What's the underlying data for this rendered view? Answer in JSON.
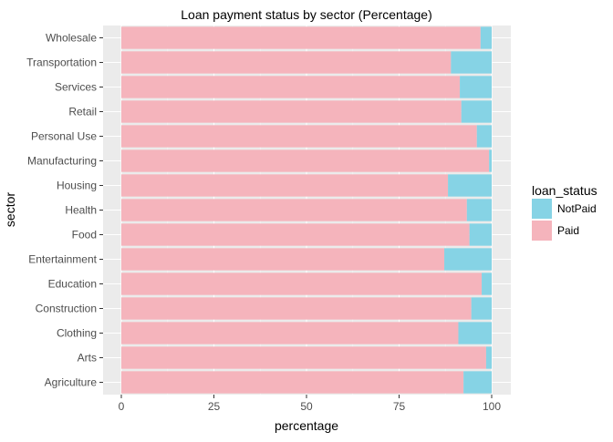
{
  "chart_data": {
    "type": "bar",
    "orientation": "horizontal",
    "stacked": true,
    "title": "Loan payment status by sector (Percentage)",
    "xlabel": "percentage",
    "ylabel": "sector",
    "xlim": [
      0,
      100
    ],
    "xticks": [
      0,
      25,
      50,
      75,
      100
    ],
    "grid": true,
    "legend": {
      "title": "loan_status",
      "position": "right"
    },
    "categories": [
      "Agriculture",
      "Arts",
      "Clothing",
      "Construction",
      "Education",
      "Entertainment",
      "Food",
      "Health",
      "Housing",
      "Manufacturing",
      "Personal Use",
      "Retail",
      "Services",
      "Transportation",
      "Wholesale"
    ],
    "series": [
      {
        "name": "Paid",
        "color": "#F5B4BC",
        "values": [
          92.4,
          98.5,
          91.0,
          94.5,
          97.3,
          87.2,
          94.0,
          93.3,
          88.2,
          99.3,
          96.0,
          91.8,
          91.4,
          89.0,
          97.0
        ]
      },
      {
        "name": "NotPaid",
        "color": "#86D3E5",
        "values": [
          7.6,
          1.5,
          9.0,
          5.5,
          2.7,
          12.8,
          6.0,
          6.7,
          11.8,
          0.7,
          4.0,
          8.2,
          8.6,
          11.0,
          3.0
        ]
      }
    ]
  }
}
